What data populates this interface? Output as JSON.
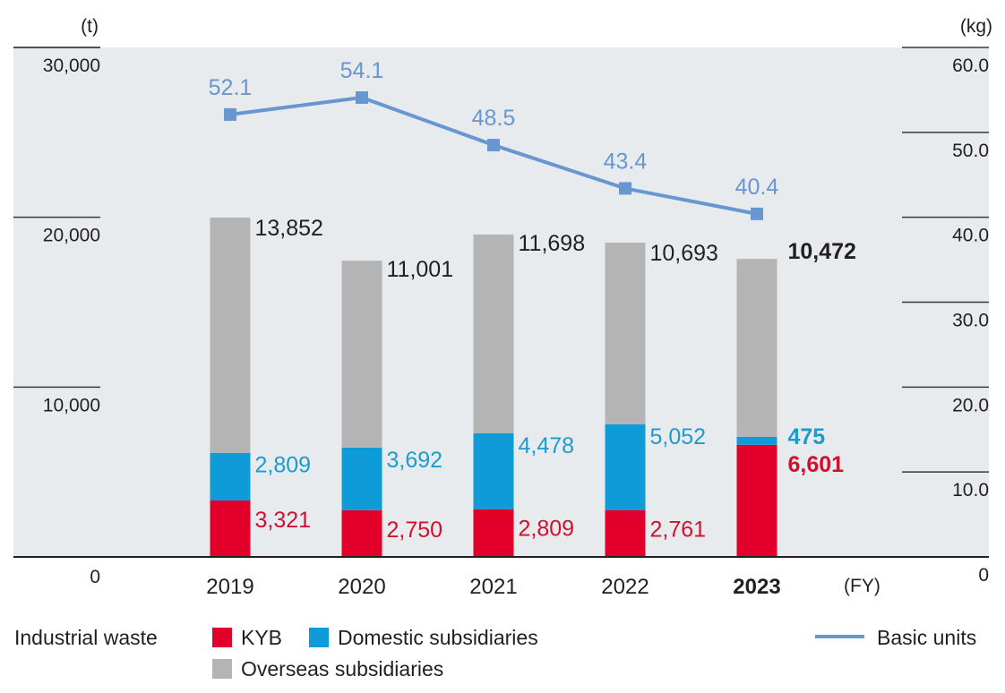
{
  "chart_data": {
    "type": "bar",
    "stacked": true,
    "title": "",
    "xlabel": "(FY)",
    "ylabel_left": "(t)",
    "ylabel_right": "(kg)",
    "categories": [
      "2019",
      "2020",
      "2021",
      "2022",
      "2023"
    ],
    "highlight_category": "2023",
    "ylim_left": [
      0,
      30000
    ],
    "yticks_left": [
      0,
      10000,
      20000,
      30000
    ],
    "ytick_labels_left": [
      "0",
      "10,000",
      "20,000",
      "30,000"
    ],
    "ylim_right": [
      0,
      60
    ],
    "yticks_right": [
      0,
      10,
      20,
      30,
      40,
      50,
      60
    ],
    "ytick_labels_right": [
      "0",
      "10.0",
      "20.0",
      "30.0",
      "40.0",
      "50.0",
      "60.0"
    ],
    "series": [
      {
        "name": "KYB",
        "axis": "left",
        "color": "#E2002A",
        "values": [
          3321,
          2750,
          2809,
          2761,
          6601
        ],
        "labels": [
          "3,321",
          "2,750",
          "2,809",
          "2,761",
          "6,601"
        ]
      },
      {
        "name": "Domestic subsidiaries",
        "axis": "left",
        "color": "#0E9BD8",
        "values": [
          2809,
          3692,
          4478,
          5052,
          475
        ],
        "labels": [
          "2,809",
          "3,692",
          "4,478",
          "5,052",
          "475"
        ]
      },
      {
        "name": "Overseas subsidiaries",
        "axis": "left",
        "color": "#B4B4B4",
        "values": [
          13852,
          11001,
          11698,
          10693,
          10472
        ],
        "labels": [
          "13,852",
          "11,001",
          "11,698",
          "10,693",
          "10,472"
        ]
      },
      {
        "name": "Basic units",
        "type": "line",
        "axis": "right",
        "color": "#6896D0",
        "values": [
          52.1,
          54.1,
          48.5,
          43.4,
          40.4
        ],
        "labels": [
          "52.1",
          "54.1",
          "48.5",
          "43.4",
          "40.4"
        ]
      }
    ],
    "grid": true,
    "plot_background": "#E8EBEE",
    "legend_position": "bottom"
  },
  "legend": {
    "group_label": "Industrial waste",
    "items": [
      "KYB",
      "Domestic subsidiaries",
      "Overseas subsidiaries"
    ],
    "line_item": "Basic units"
  }
}
